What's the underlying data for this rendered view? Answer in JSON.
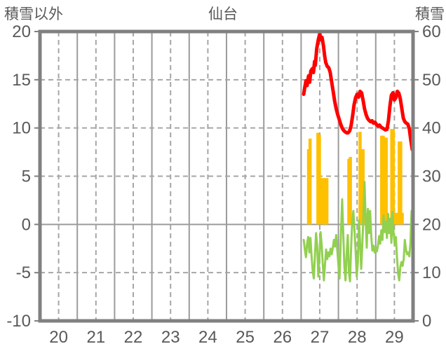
{
  "header": {
    "left_axis_title": "積雪以外",
    "title": "仙台",
    "right_axis_title": "積雪"
  },
  "colors": {
    "text": "#595959",
    "border": "#808080",
    "grid_dashed": "#a6a6a6",
    "grid_solid": "#9b9b9b",
    "red_line": "#ff0000",
    "orange_bars": "#ffc000",
    "green_line": "#92d050",
    "background": "#ffffff"
  },
  "chart_data": {
    "type": "line",
    "title": "仙台",
    "left_axis": {
      "label": "積雪以外",
      "range": [
        -10,
        20
      ],
      "ticks": [
        20,
        15,
        10,
        5,
        0,
        -5,
        -10
      ]
    },
    "right_axis": {
      "label": "積雪",
      "range": [
        0,
        60
      ],
      "ticks": [
        60,
        50,
        40,
        30,
        20,
        10,
        0
      ]
    },
    "x_axis": {
      "range": [
        19.5,
        29.5
      ],
      "ticks": [
        20,
        21,
        22,
        23,
        24,
        25,
        26,
        27,
        28,
        29
      ]
    },
    "grid": {
      "vertical_dashed_at_day_centers": true,
      "vertical_solid_at_day_boundaries": true,
      "horizontal_dashed": [
        15,
        10,
        5,
        -5
      ],
      "horizontal_solid": [
        0
      ]
    },
    "legend": "none",
    "series": [
      {
        "name": "red_line",
        "type": "line",
        "axis": "right",
        "color": "#ff0000",
        "width": 5,
        "points": [
          [
            26.57,
            47.0
          ],
          [
            26.6,
            48.5
          ],
          [
            26.63,
            49.8
          ],
          [
            26.66,
            48.8
          ],
          [
            26.7,
            50.8
          ],
          [
            26.73,
            49.5
          ],
          [
            26.76,
            51.8
          ],
          [
            26.8,
            52.3
          ],
          [
            26.83,
            51.5
          ],
          [
            26.86,
            53.8
          ],
          [
            26.88,
            53.0
          ],
          [
            26.92,
            56.5
          ],
          [
            26.96,
            58.3
          ],
          [
            27.0,
            59.6
          ],
          [
            27.03,
            58.3
          ],
          [
            27.06,
            58.8
          ],
          [
            27.1,
            57.0
          ],
          [
            27.13,
            55.0
          ],
          [
            27.16,
            53.6
          ],
          [
            27.2,
            52.8
          ],
          [
            27.24,
            52.5
          ],
          [
            27.28,
            51.5
          ],
          [
            27.32,
            49.5
          ],
          [
            27.36,
            47.5
          ],
          [
            27.4,
            45.5
          ],
          [
            27.44,
            44.0
          ],
          [
            27.48,
            42.8
          ],
          [
            27.52,
            41.8
          ],
          [
            27.56,
            40.8
          ],
          [
            27.6,
            40.0
          ],
          [
            27.64,
            39.5
          ],
          [
            27.68,
            39.2
          ],
          [
            27.72,
            39.0
          ],
          [
            27.76,
            39.0
          ],
          [
            27.8,
            39.4
          ],
          [
            27.84,
            40.5
          ],
          [
            27.88,
            42.5
          ],
          [
            27.92,
            44.8
          ],
          [
            27.96,
            46.3
          ],
          [
            28.0,
            47.0
          ],
          [
            28.04,
            46.4
          ],
          [
            28.08,
            47.6
          ],
          [
            28.12,
            47.3
          ],
          [
            28.16,
            45.8
          ],
          [
            28.2,
            44.0
          ],
          [
            28.24,
            42.8
          ],
          [
            28.28,
            42.0
          ],
          [
            28.32,
            41.6
          ],
          [
            28.36,
            41.3
          ],
          [
            28.4,
            41.5
          ],
          [
            28.44,
            41.0
          ],
          [
            28.48,
            41.2
          ],
          [
            28.52,
            40.7
          ],
          [
            28.56,
            40.4
          ],
          [
            28.6,
            40.6
          ],
          [
            28.64,
            40.2
          ],
          [
            28.68,
            40.0
          ],
          [
            28.72,
            39.8
          ],
          [
            28.76,
            39.6
          ],
          [
            28.8,
            39.7
          ],
          [
            28.84,
            41.5
          ],
          [
            28.88,
            44.5
          ],
          [
            28.92,
            46.8
          ],
          [
            28.96,
            47.3
          ],
          [
            29.0,
            45.8
          ],
          [
            29.04,
            46.3
          ],
          [
            29.08,
            47.6
          ],
          [
            29.12,
            47.2
          ],
          [
            29.16,
            46.0
          ],
          [
            29.2,
            44.0
          ],
          [
            29.24,
            42.0
          ],
          [
            29.28,
            41.3
          ],
          [
            29.32,
            41.0
          ],
          [
            29.36,
            40.8
          ],
          [
            29.4,
            39.8
          ],
          [
            29.44,
            37.5
          ],
          [
            29.48,
            35.5
          ]
        ]
      },
      {
        "name": "orange_bars",
        "type": "bar",
        "axis": "left",
        "color": "#ffc000",
        "bar_width": 4.5,
        "points": [
          [
            26.7,
            7.8
          ],
          [
            26.74,
            8.9
          ],
          [
            26.95,
            9.5
          ],
          [
            26.99,
            9.3
          ],
          [
            27.07,
            4.8
          ],
          [
            27.11,
            4.8
          ],
          [
            27.15,
            4.8
          ],
          [
            27.19,
            4.8
          ],
          [
            27.78,
            6.8
          ],
          [
            27.82,
            7.0
          ],
          [
            28.08,
            9.6
          ],
          [
            28.12,
            7.8
          ],
          [
            28.16,
            7.8
          ],
          [
            28.24,
            1.2
          ],
          [
            28.66,
            9.2
          ],
          [
            28.7,
            9.2
          ],
          [
            28.78,
            9.0
          ],
          [
            28.93,
            9.9
          ],
          [
            28.97,
            9.9
          ],
          [
            29.05,
            1.2
          ],
          [
            29.09,
            1.2
          ],
          [
            29.13,
            8.6
          ],
          [
            29.17,
            8.6
          ],
          [
            29.21,
            1.2
          ],
          [
            29.48,
            1.4
          ]
        ]
      },
      {
        "name": "green_line",
        "type": "line",
        "axis": "left",
        "color": "#92d050",
        "width": 3,
        "points": [
          [
            26.57,
            -1.6
          ],
          [
            26.6,
            -2.6
          ],
          [
            26.63,
            -3.4
          ],
          [
            26.66,
            -2.0
          ],
          [
            26.69,
            -1.3
          ],
          [
            26.72,
            -2.9
          ],
          [
            26.75,
            -1.4
          ],
          [
            26.78,
            -3.3
          ],
          [
            26.81,
            -4.8
          ],
          [
            26.84,
            -5.6
          ],
          [
            26.87,
            -3.2
          ],
          [
            26.9,
            -0.9
          ],
          [
            26.93,
            -2.2
          ],
          [
            26.96,
            -5.4
          ],
          [
            26.99,
            -3.4
          ],
          [
            27.02,
            -0.8
          ],
          [
            27.05,
            -2.1
          ],
          [
            27.08,
            -4.2
          ],
          [
            27.11,
            -5.8
          ],
          [
            27.14,
            -4.2
          ],
          [
            27.17,
            -2.6
          ],
          [
            27.2,
            -3.6
          ],
          [
            27.23,
            -2.9
          ],
          [
            27.26,
            -3.3
          ],
          [
            27.29,
            -2.5
          ],
          [
            27.32,
            -3.1
          ],
          [
            27.35,
            -2.4
          ],
          [
            27.38,
            -1.6
          ],
          [
            27.41,
            -2.3
          ],
          [
            27.44,
            -1.1
          ],
          [
            27.47,
            -2.7
          ],
          [
            27.5,
            -4.2
          ],
          [
            27.53,
            -5.6
          ],
          [
            27.56,
            -1.8
          ],
          [
            27.6,
            2.6
          ],
          [
            27.63,
            -0.9
          ],
          [
            27.66,
            -4.4
          ],
          [
            27.69,
            -5.8
          ],
          [
            27.72,
            -3.1
          ],
          [
            27.75,
            -1.1
          ],
          [
            27.78,
            -4.9
          ],
          [
            27.81,
            -5.9
          ],
          [
            27.84,
            -2.4
          ],
          [
            27.87,
            0.3
          ],
          [
            27.9,
            1.4
          ],
          [
            27.93,
            -0.6
          ],
          [
            27.96,
            -2.7
          ],
          [
            27.99,
            -5.4
          ],
          [
            28.02,
            -3.9
          ],
          [
            28.05,
            0.4
          ],
          [
            28.08,
            -1.9
          ],
          [
            28.11,
            -4.6
          ],
          [
            28.14,
            -2.2
          ],
          [
            28.17,
            0.8
          ],
          [
            28.2,
            4.4
          ],
          [
            28.23,
            0.6
          ],
          [
            28.26,
            -2.4
          ],
          [
            28.29,
            1.6
          ],
          [
            28.32,
            -0.9
          ],
          [
            28.35,
            1.4
          ],
          [
            28.38,
            -1.2
          ],
          [
            28.41,
            -2.7
          ],
          [
            28.44,
            -2.2
          ],
          [
            28.47,
            -2.9
          ],
          [
            28.5,
            -2.4
          ],
          [
            28.53,
            -2.8
          ],
          [
            28.56,
            -2.2
          ],
          [
            28.59,
            -1.2
          ],
          [
            28.62,
            -2.0
          ],
          [
            28.65,
            -0.6
          ],
          [
            28.68,
            -1.6
          ],
          [
            28.71,
            0.9
          ],
          [
            28.74,
            -0.8
          ],
          [
            28.77,
            0.3
          ],
          [
            28.8,
            -1.4
          ],
          [
            28.83,
            1.1
          ],
          [
            28.86,
            -0.9
          ],
          [
            28.89,
            0.6
          ],
          [
            28.92,
            -1.9
          ],
          [
            28.95,
            1.3
          ],
          [
            28.98,
            -0.9
          ],
          [
            29.01,
            -2.1
          ],
          [
            29.04,
            -1.3
          ],
          [
            29.07,
            -3.4
          ],
          [
            29.1,
            -5.1
          ],
          [
            29.13,
            -5.8
          ],
          [
            29.16,
            -4.4
          ],
          [
            29.19,
            -3.9
          ],
          [
            29.22,
            -4.3
          ],
          [
            29.25,
            -3.6
          ],
          [
            29.28,
            -1.6
          ],
          [
            29.31,
            -2.6
          ],
          [
            29.34,
            -3.1
          ],
          [
            29.37,
            -2.9
          ],
          [
            29.4,
            -3.3
          ],
          [
            29.43,
            -1.9
          ],
          [
            29.46,
            1.4
          ]
        ]
      }
    ]
  }
}
